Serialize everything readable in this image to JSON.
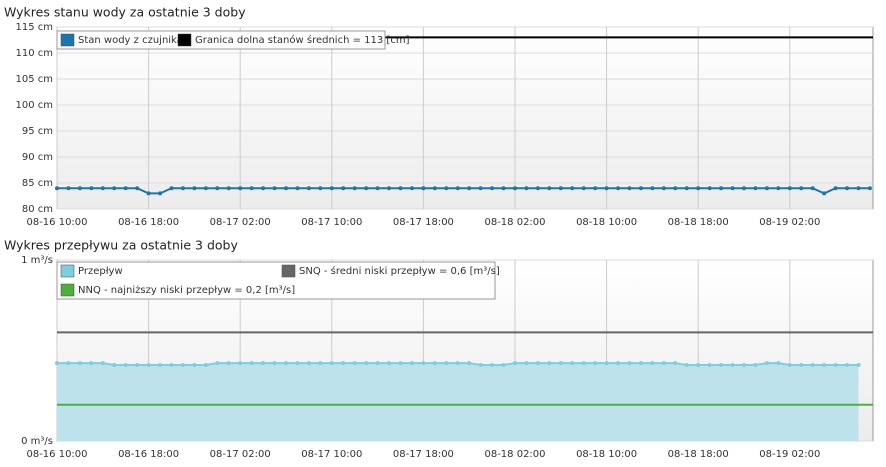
{
  "chart_data": [
    {
      "type": "line",
      "title": "Wykres stanu wody za ostatnie 3 doby",
      "categories": [
        "08-16 10:00",
        null,
        null,
        null,
        null,
        null,
        null,
        null,
        "08-16 18:00",
        null,
        null,
        null,
        null,
        null,
        null,
        null,
        "08-17 02:00",
        null,
        null,
        null,
        null,
        null,
        null,
        null,
        "08-17 10:00",
        null,
        null,
        null,
        null,
        null,
        null,
        null,
        "08-17 18:00",
        null,
        null,
        null,
        null,
        null,
        null,
        null,
        "08-18 02:00",
        null,
        null,
        null,
        null,
        null,
        null,
        null,
        "08-18 10:00",
        null,
        null,
        null,
        null,
        null,
        null,
        null,
        "08-18 18:00",
        null,
        null,
        null,
        null,
        null,
        null,
        null,
        "08-19 02:00",
        null,
        null,
        null,
        null,
        null,
        null,
        null
      ],
      "series": [
        {
          "name": "Stan wody z czujnika",
          "color": "#1b76b0",
          "values": [
            84,
            84,
            84,
            84,
            84,
            84,
            84,
            84,
            83,
            83,
            84,
            84,
            84,
            84,
            84,
            84,
            84,
            84,
            84,
            84,
            84,
            84,
            84,
            84,
            84,
            84,
            84,
            84,
            84,
            84,
            84,
            84,
            84,
            84,
            84,
            84,
            84,
            84,
            84,
            84,
            84,
            84,
            84,
            84,
            84,
            84,
            84,
            84,
            84,
            84,
            84,
            84,
            84,
            84,
            84,
            84,
            84,
            84,
            84,
            84,
            84,
            84,
            84,
            84,
            84,
            84,
            84,
            83,
            84,
            84,
            84,
            84
          ]
        }
      ],
      "reference_lines": [
        {
          "name": "Granica dolna stanów średnich = 113 [cm]",
          "color": "#000000",
          "value": 113
        }
      ],
      "ylim": [
        80,
        115
      ],
      "yticks": [
        {
          "value": 80,
          "label": "80 cm"
        },
        {
          "value": 85,
          "label": "85 cm"
        },
        {
          "value": 90,
          "label": "90 cm"
        },
        {
          "value": 95,
          "label": "95 cm"
        },
        {
          "value": 100,
          "label": "100 cm"
        },
        {
          "value": 105,
          "label": "105 cm"
        },
        {
          "value": 110,
          "label": "110 cm"
        },
        {
          "value": 115,
          "label": "115 cm"
        }
      ],
      "grid": true
    },
    {
      "type": "area",
      "title": "Wykres przepływu za ostatnie 3 doby",
      "categories": [
        "08-16 10:00",
        null,
        null,
        null,
        null,
        null,
        null,
        null,
        "08-16 18:00",
        null,
        null,
        null,
        null,
        null,
        null,
        null,
        "08-17 02:00",
        null,
        null,
        null,
        null,
        null,
        null,
        null,
        "08-17 10:00",
        null,
        null,
        null,
        null,
        null,
        null,
        null,
        "08-17 18:00",
        null,
        null,
        null,
        null,
        null,
        null,
        null,
        "08-18 02:00",
        null,
        null,
        null,
        null,
        null,
        null,
        null,
        "08-18 10:00",
        null,
        null,
        null,
        null,
        null,
        null,
        null,
        "08-18 18:00",
        null,
        null,
        null,
        null,
        null,
        null,
        null,
        "08-19 02:00",
        null,
        null,
        null,
        null,
        null,
        null
      ],
      "series": [
        {
          "name": "Przepływ",
          "color": "#7ccfe0",
          "values": [
            0.43,
            0.43,
            0.43,
            0.43,
            0.43,
            0.42,
            0.42,
            0.42,
            0.42,
            0.42,
            0.42,
            0.42,
            0.42,
            0.42,
            0.43,
            0.43,
            0.43,
            0.43,
            0.43,
            0.43,
            0.43,
            0.43,
            0.43,
            0.43,
            0.43,
            0.43,
            0.43,
            0.43,
            0.43,
            0.43,
            0.43,
            0.43,
            0.43,
            0.43,
            0.43,
            0.43,
            0.43,
            0.42,
            0.42,
            0.42,
            0.43,
            0.43,
            0.43,
            0.43,
            0.43,
            0.43,
            0.43,
            0.43,
            0.43,
            0.43,
            0.43,
            0.43,
            0.43,
            0.43,
            0.43,
            0.42,
            0.42,
            0.42,
            0.42,
            0.42,
            0.42,
            0.42,
            0.43,
            0.43,
            0.42,
            0.42,
            0.42,
            0.42,
            0.42,
            0.42,
            0.42
          ]
        }
      ],
      "reference_lines": [
        {
          "name": "SNQ - średni niski przepływ = 0,6 [m³/s]",
          "color": "#666666",
          "value": 0.6
        },
        {
          "name": "NNQ - najniższy niski przepływ = 0,2 [m³/s]",
          "color": "#4caf3a",
          "value": 0.2
        }
      ],
      "ylim": [
        0,
        1
      ],
      "yticks": [
        {
          "value": 0,
          "label": "0 m³/s"
        },
        {
          "value": 1,
          "label": "1 m³/s"
        }
      ],
      "grid": true
    }
  ]
}
